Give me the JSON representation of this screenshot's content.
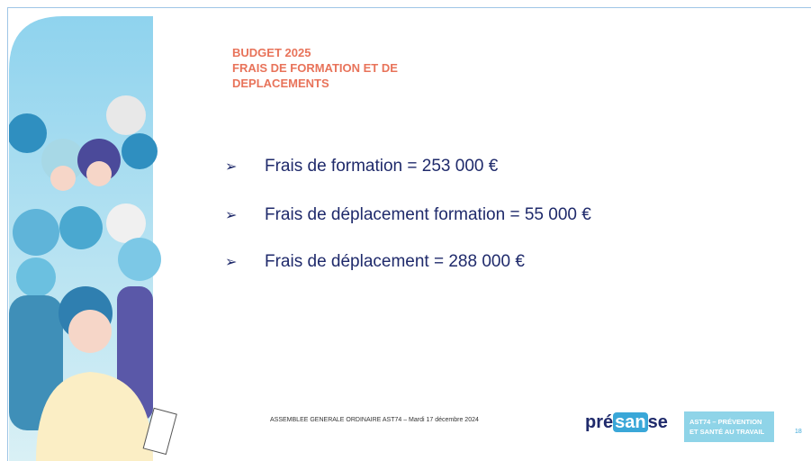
{
  "header": {
    "title": [
      "BUDGET 2025",
      "FRAIS DE FORMATION ET DE",
      "DEPLACEMENTS"
    ]
  },
  "items": [
    "Frais de formation = 253 000 €",
    "Frais de déplacement formation = 55 000 €",
    "Frais de déplacement = 288 000 €"
  ],
  "footer": {
    "text": "ASSEMBLEE GENERALE ORDINAIRE AST74   – Mardi 17 décembre 2024",
    "logo_presanse": [
      "pré",
      "san",
      "se"
    ],
    "logo_ast74": [
      "AST74 – PRÉVENTION",
      "ET SANTÉ AU TRAVAIL"
    ],
    "page_number": "18"
  }
}
